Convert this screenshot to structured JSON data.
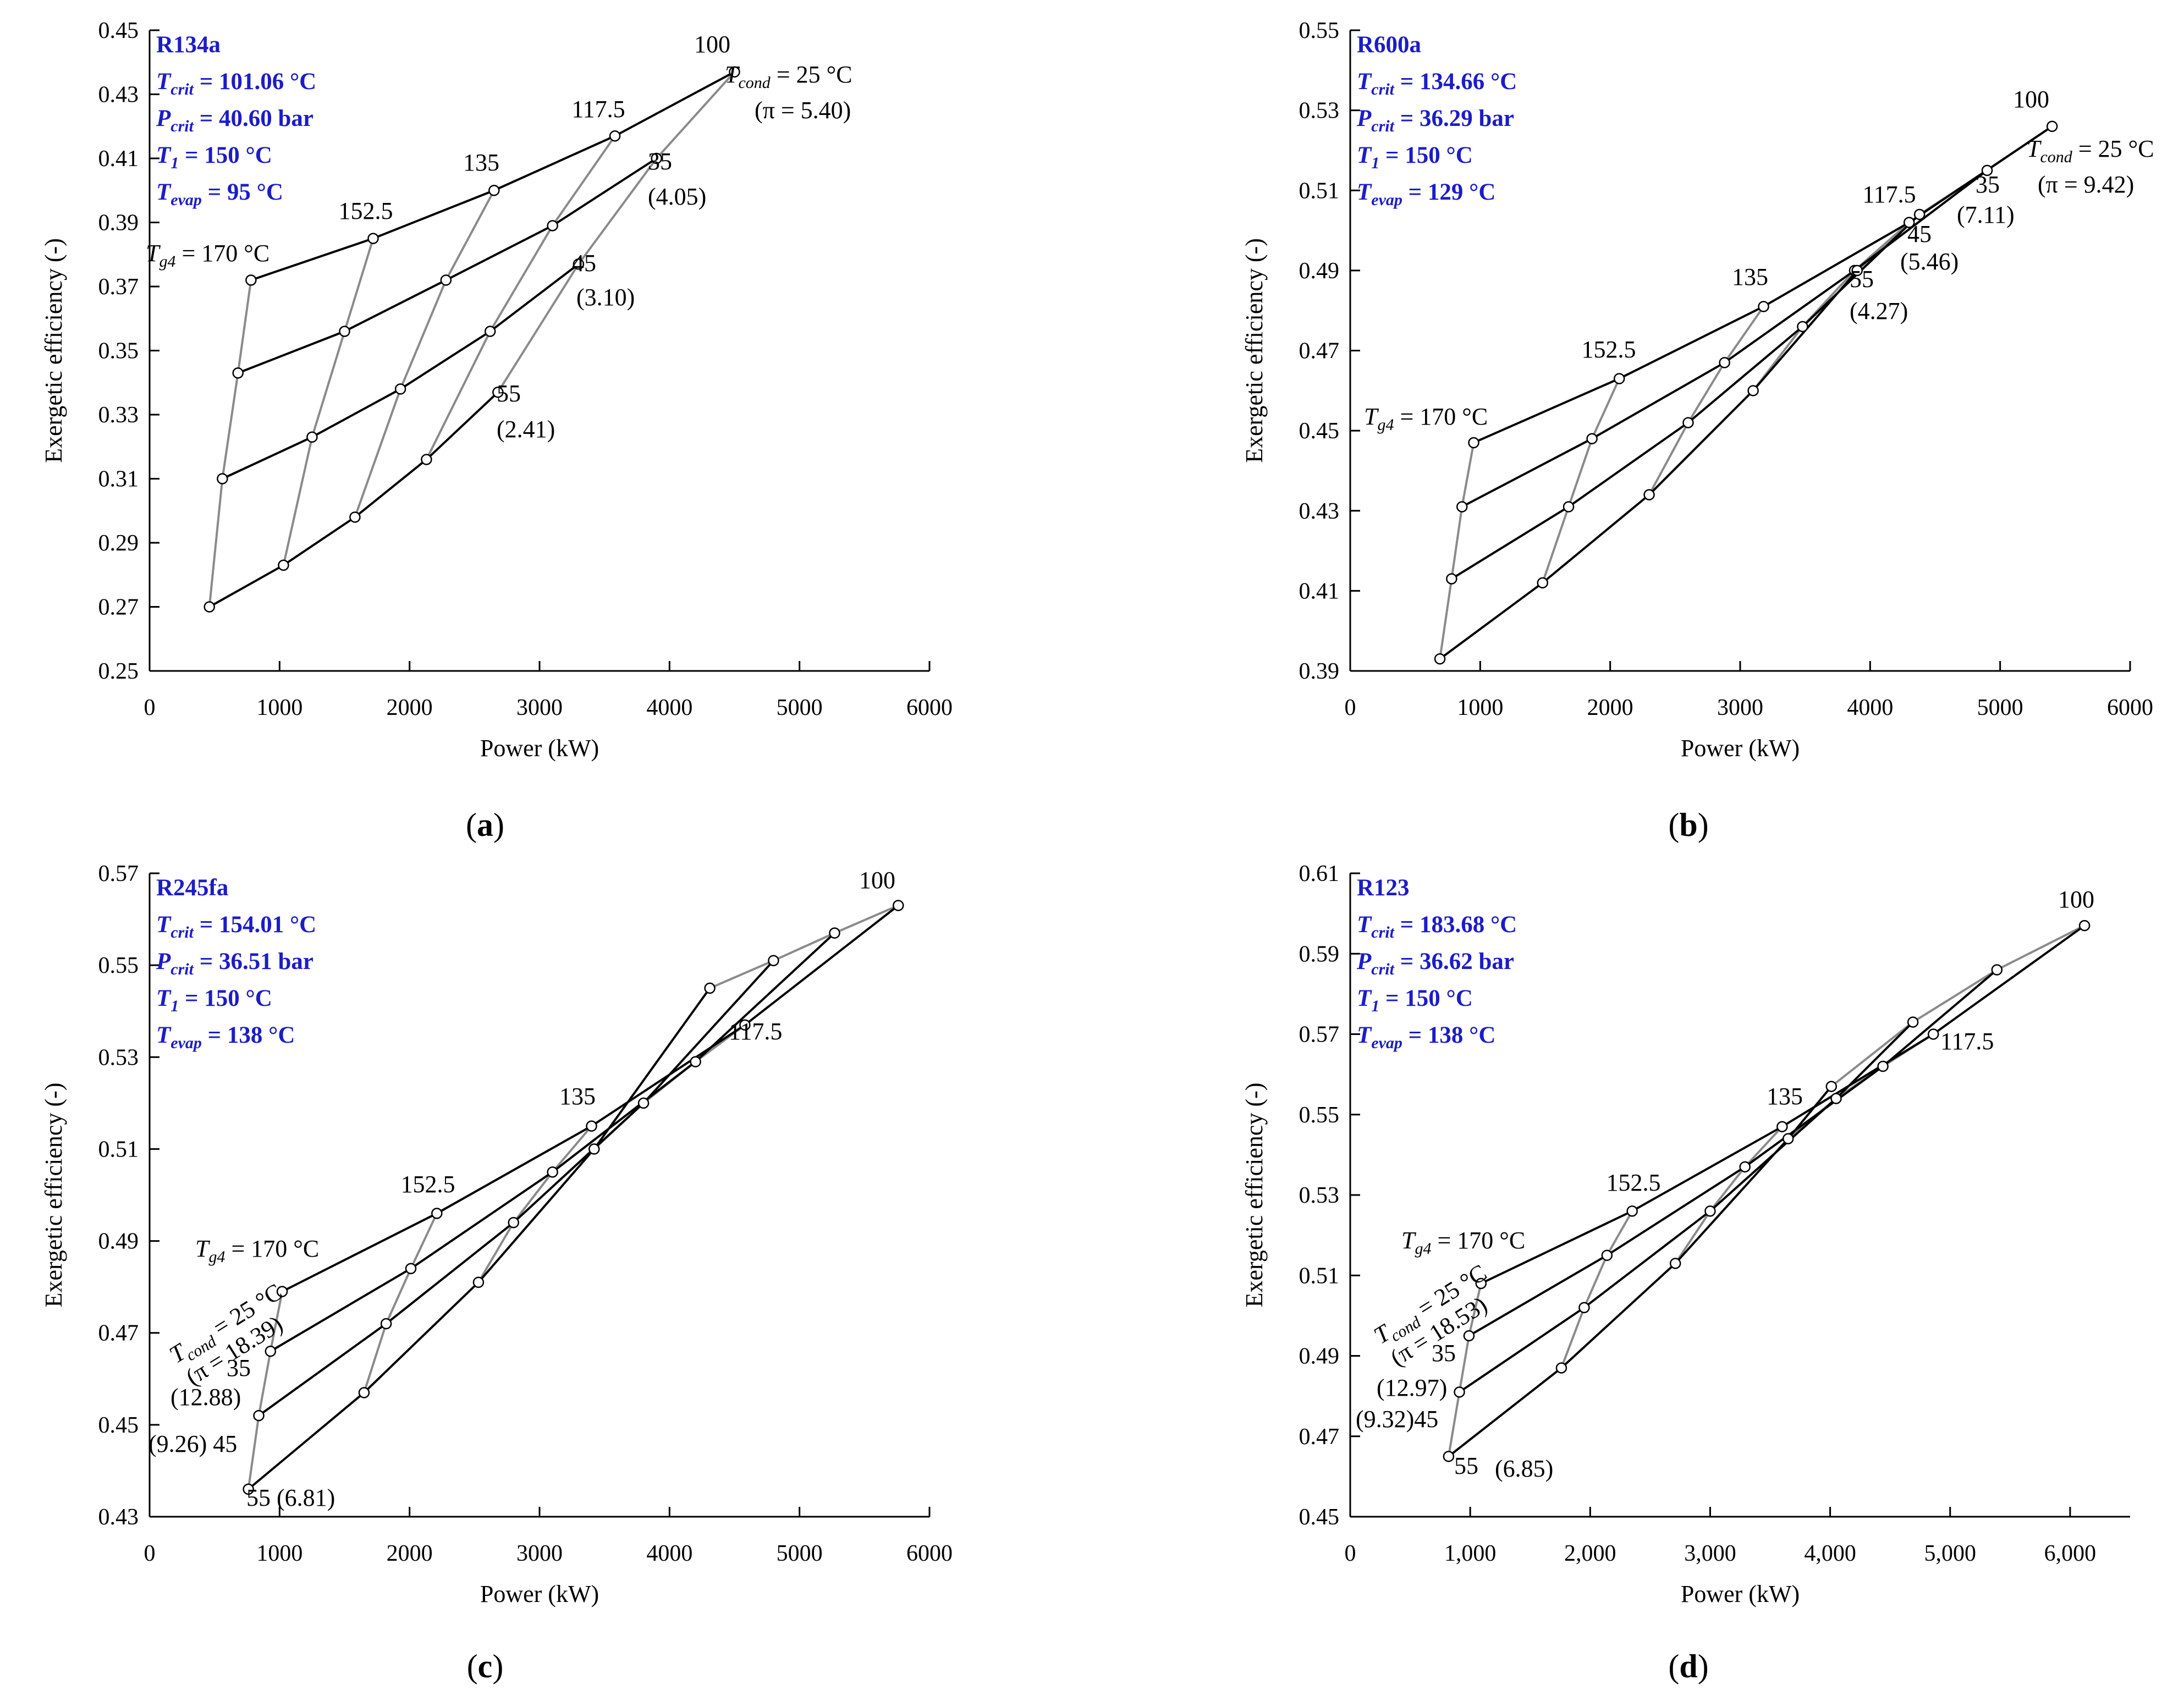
{
  "figure": {
    "xlabel": "Power (kW)",
    "ylabel": "Exergetic efficiency (-)"
  },
  "colors": {
    "info": "#1c1cc8",
    "tcond_line": "#000000",
    "tg4_line": "#8a8a8a",
    "axis": "#000000",
    "marker_fill": "#ffffff"
  },
  "chart_data": [
    {
      "type": "line",
      "caption": "(a)",
      "info": {
        "fluid": "R134a",
        "T_crit": "101.06 °C",
        "P_crit": "40.60 bar",
        "T_1": "150 °C",
        "T_evap": "95 °C"
      },
      "xlim": [
        0,
        6000
      ],
      "xticks": [
        0,
        1000,
        2000,
        3000,
        4000,
        5000,
        6000
      ],
      "xtick_labels": [
        "0",
        "1000",
        "2000",
        "3000",
        "4000",
        "5000",
        "6000"
      ],
      "ylim": [
        0.25,
        0.45
      ],
      "yticks": [
        0.25,
        0.27,
        0.29,
        0.31,
        0.33,
        0.35,
        0.37,
        0.39,
        0.41,
        0.43,
        0.45
      ],
      "ytick_labels": [
        "0.25",
        "0.27",
        "0.29",
        "0.31",
        "0.33",
        "0.35",
        "0.37",
        "0.39",
        "0.41",
        "0.43",
        "0.45"
      ],
      "T_g4": [
        170,
        152.5,
        135,
        117.5,
        100
      ],
      "series": [
        {
          "name": "T_cond = 25 °C",
          "x": [
            780,
            1720,
            2650,
            3580,
            4500
          ],
          "y": [
            0.372,
            0.385,
            0.4,
            0.417,
            0.437
          ]
        },
        {
          "name": "T_cond = 35 °C",
          "x": [
            680,
            1500,
            2280,
            3100,
            3900
          ],
          "y": [
            0.343,
            0.356,
            0.372,
            0.389,
            0.41
          ]
        },
        {
          "name": "T_cond = 45 °C",
          "x": [
            560,
            1250,
            1930,
            2620,
            3300
          ],
          "y": [
            0.31,
            0.323,
            0.338,
            0.356,
            0.377
          ]
        },
        {
          "name": "T_cond = 55 °C",
          "x": [
            460,
            1030,
            1580,
            2130,
            2680
          ],
          "y": [
            0.27,
            0.283,
            0.298,
            0.316,
            0.337
          ]
        }
      ],
      "labels": [
        {
          "id": "tg4",
          "sym": "T",
          "sub": "g4",
          "text": " = 170 °C"
        },
        {
          "id": "t1525",
          "text": "152.5"
        },
        {
          "id": "t135",
          "text": "135"
        },
        {
          "id": "t1175",
          "text": "117.5"
        },
        {
          "id": "t100",
          "text": "100"
        },
        {
          "id": "tcond",
          "sym": "T",
          "sub": "cond",
          "text": " = 25 °C"
        },
        {
          "id": "pi25",
          "text": "(π = 5.40)"
        },
        {
          "id": "c35",
          "text": "35"
        },
        {
          "id": "p35",
          "text": "(4.05)"
        },
        {
          "id": "c45",
          "text": "45"
        },
        {
          "id": "p45",
          "text": "(3.10)"
        },
        {
          "id": "c55",
          "text": "55"
        },
        {
          "id": "p55",
          "text": "(2.41)"
        }
      ]
    },
    {
      "type": "line",
      "caption": "(b)",
      "info": {
        "fluid": "R600a",
        "T_crit": "134.66 °C",
        "P_crit": "36.29 bar",
        "T_1": "150 °C",
        "T_evap": "129 °C"
      },
      "xlim": [
        0,
        6000
      ],
      "xticks": [
        0,
        1000,
        2000,
        3000,
        4000,
        5000,
        6000
      ],
      "xtick_labels": [
        "0",
        "1000",
        "2000",
        "3000",
        "4000",
        "5000",
        "6000"
      ],
      "ylim": [
        0.39,
        0.55
      ],
      "yticks": [
        0.39,
        0.41,
        0.43,
        0.45,
        0.47,
        0.49,
        0.51,
        0.53,
        0.55
      ],
      "ytick_labels": [
        "0.39",
        "0.41",
        "0.43",
        "0.45",
        "0.47",
        "0.49",
        "0.51",
        "0.53",
        "0.55"
      ],
      "T_g4": [
        170,
        152.5,
        135,
        117.5,
        100
      ],
      "series": [
        {
          "name": "T_cond = 25 °C",
          "x": [
            950,
            2070,
            3180,
            4300,
            5400
          ],
          "y": [
            0.447,
            0.463,
            0.481,
            0.502,
            0.526
          ]
        },
        {
          "name": "T_cond = 35 °C",
          "x": [
            860,
            1860,
            2880,
            3880,
            4900
          ],
          "y": [
            0.431,
            0.448,
            0.467,
            0.49,
            0.515
          ]
        },
        {
          "name": "T_cond = 45 °C",
          "x": [
            780,
            1680,
            2600,
            3480,
            4380
          ],
          "y": [
            0.413,
            0.431,
            0.452,
            0.476,
            0.504
          ]
        },
        {
          "name": "T_cond = 55 °C",
          "x": [
            690,
            1480,
            2300,
            3100,
            3900
          ],
          "y": [
            0.393,
            0.412,
            0.434,
            0.46,
            0.49
          ]
        }
      ],
      "labels": [
        {
          "id": "tg4",
          "sym": "T",
          "sub": "g4",
          "text": " = 170 °C"
        },
        {
          "id": "t1525",
          "text": "152.5"
        },
        {
          "id": "t135",
          "text": "135"
        },
        {
          "id": "t1175",
          "text": "117.5"
        },
        {
          "id": "t100",
          "text": "100"
        },
        {
          "id": "tcond",
          "sym": "T",
          "sub": "cond",
          "text": " = 25 °C"
        },
        {
          "id": "pi25",
          "text": "(π = 9.42)"
        },
        {
          "id": "c35",
          "text": "35"
        },
        {
          "id": "p35",
          "text": "(7.11)"
        },
        {
          "id": "c45",
          "text": "45"
        },
        {
          "id": "p45",
          "text": "(5.46)"
        },
        {
          "id": "c55",
          "text": "55"
        },
        {
          "id": "p55",
          "text": "(4.27)"
        }
      ]
    },
    {
      "type": "line",
      "caption": "(c)",
      "info": {
        "fluid": "R245fa",
        "T_crit": "154.01 °C",
        "P_crit": "36.51 bar",
        "T_1": "150 °C",
        "T_evap": "138 °C"
      },
      "xlim": [
        0,
        6000
      ],
      "xticks": [
        0,
        1000,
        2000,
        3000,
        4000,
        5000,
        6000
      ],
      "xtick_labels": [
        "0",
        "1000",
        "2000",
        "3000",
        "4000",
        "5000",
        "6000"
      ],
      "ylim": [
        0.43,
        0.57
      ],
      "yticks": [
        0.43,
        0.45,
        0.47,
        0.49,
        0.51,
        0.53,
        0.55,
        0.57
      ],
      "ytick_labels": [
        "0.43",
        "0.45",
        "0.47",
        "0.49",
        "0.51",
        "0.53",
        "0.55",
        "0.57"
      ],
      "T_g4": [
        170,
        152.5,
        135,
        117.5,
        100
      ],
      "series": [
        {
          "name": "T_cond = 25 °C",
          "x": [
            1020,
            2210,
            3400,
            4580,
            5760
          ],
          "y": [
            0.479,
            0.496,
            0.515,
            0.537,
            0.563
          ]
        },
        {
          "name": "T_cond = 35 °C",
          "x": [
            930,
            2010,
            3100,
            4200,
            5270
          ],
          "y": [
            0.466,
            0.484,
            0.505,
            0.529,
            0.557
          ]
        },
        {
          "name": "T_cond = 45 °C",
          "x": [
            840,
            1820,
            2800,
            3800,
            4800
          ],
          "y": [
            0.452,
            0.472,
            0.494,
            0.52,
            0.551
          ]
        },
        {
          "name": "T_cond = 55 °C",
          "x": [
            760,
            1650,
            2530,
            3420,
            4310
          ],
          "y": [
            0.436,
            0.457,
            0.481,
            0.51,
            0.545
          ]
        }
      ],
      "labels": [
        {
          "id": "tg4",
          "sym": "T",
          "sub": "g4",
          "text": " = 170 °C"
        },
        {
          "id": "t1525",
          "text": "152.5"
        },
        {
          "id": "t135",
          "text": "135"
        },
        {
          "id": "t1175",
          "text": "117.5"
        },
        {
          "id": "t100",
          "text": "100"
        },
        {
          "id": "tcond",
          "sym": "T",
          "sub": "cond",
          "text": " = 25 °C"
        },
        {
          "id": "pi25",
          "text": "(π = 18.39)"
        },
        {
          "id": "c35",
          "text": "35"
        },
        {
          "id": "p35",
          "text": "(12.88)"
        },
        {
          "id": "p45",
          "text": "(9.26) 45"
        },
        {
          "id": "p55",
          "text": "55 (6.81)"
        }
      ]
    },
    {
      "type": "line",
      "caption": "(d)",
      "info": {
        "fluid": "R123",
        "T_crit": "183.68 °C",
        "P_crit": "36.62 bar",
        "T_1": "150 °C",
        "T_evap": "138 °C"
      },
      "xlim": [
        0,
        6500
      ],
      "xticks": [
        0,
        1000,
        2000,
        3000,
        4000,
        5000,
        6000
      ],
      "xtick_labels": [
        "0",
        "1,000",
        "2,000",
        "3,000",
        "4,000",
        "5,000",
        "6,000"
      ],
      "ylim": [
        0.45,
        0.61
      ],
      "yticks": [
        0.45,
        0.47,
        0.49,
        0.51,
        0.53,
        0.55,
        0.57,
        0.59,
        0.61
      ],
      "ytick_labels": [
        "0.45",
        "0.47",
        "0.49",
        "0.51",
        "0.53",
        "0.55",
        "0.57",
        "0.59",
        "0.61"
      ],
      "T_g4": [
        170,
        152.5,
        135,
        117.5,
        100
      ],
      "series": [
        {
          "name": "T_cond = 25 °C",
          "x": [
            1090,
            2350,
            3600,
            4860,
            6120
          ],
          "y": [
            0.508,
            0.526,
            0.547,
            0.57,
            0.597
          ]
        },
        {
          "name": "T_cond = 35 °C",
          "x": [
            990,
            2140,
            3290,
            4440,
            5390
          ],
          "y": [
            0.495,
            0.515,
            0.537,
            0.562,
            0.586
          ]
        },
        {
          "name": "T_cond = 45 °C",
          "x": [
            910,
            1950,
            3000,
            4050,
            4690
          ],
          "y": [
            0.481,
            0.502,
            0.526,
            0.554,
            0.573
          ]
        },
        {
          "name": "T_cond = 55 °C",
          "x": [
            820,
            1760,
            2710,
            3650,
            4010
          ],
          "y": [
            0.465,
            0.487,
            0.513,
            0.544,
            0.557
          ]
        }
      ],
      "labels": [
        {
          "id": "tg4",
          "sym": "T",
          "sub": "g4",
          "text": " = 170 °C"
        },
        {
          "id": "t1525",
          "text": "152.5"
        },
        {
          "id": "t135",
          "text": "135"
        },
        {
          "id": "t1175",
          "text": "117.5"
        },
        {
          "id": "t100",
          "text": "100"
        },
        {
          "id": "tcond",
          "sym": "T",
          "sub": "cond",
          "text": " = 25 °C"
        },
        {
          "id": "pi25",
          "text": "(π = 18.53)"
        },
        {
          "id": "c35",
          "text": "35"
        },
        {
          "id": "p35",
          "text": "(12.97)"
        },
        {
          "id": "p45",
          "text": "(9.32)45"
        },
        {
          "id": "c55",
          "text": "55"
        },
        {
          "id": "p55",
          "text": "(6.85)"
        }
      ]
    }
  ]
}
